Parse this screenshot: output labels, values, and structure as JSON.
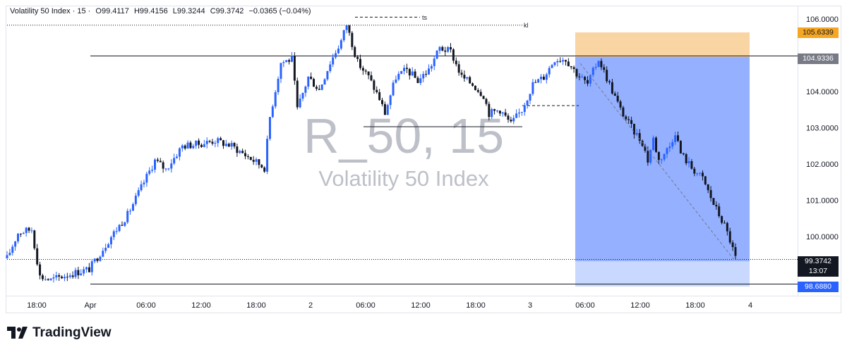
{
  "header": {
    "symbol": "Volatility 50 Index · 15 ·",
    "open": "O99.4117",
    "high": "H99.4156",
    "low": "L99.3244",
    "close": "C99.3742",
    "change": "−0.0365 (−0.04%)"
  },
  "watermark": {
    "symbol": "R_50, 15",
    "name": "Volatility 50 Index"
  },
  "brand": {
    "name": "TradingView"
  },
  "price_labels": {
    "stop": "105.6339",
    "entry": "104.9336",
    "last_price": "99.3742",
    "countdown": "13:07",
    "target": "98.6880"
  },
  "annotations": {
    "ts": "ts",
    "kl": "kl"
  },
  "colors": {
    "up": "#2962ff",
    "down": "#131722",
    "stop_zone": "#f5c98a",
    "target_zone": "#5b8cff",
    "entry_label": "#787b86",
    "target_label": "#2962ff",
    "stop_label": "#f5a623",
    "last_label": "#131722"
  },
  "chart_data": {
    "type": "candlestick",
    "title": "Volatility 50 Index",
    "y_ticks": [
      "106.0000",
      "104.0000",
      "103.0000",
      "102.0000",
      "101.0000",
      "100.0000"
    ],
    "x_ticks": [
      "18:00",
      "Apr",
      "06:00",
      "12:00",
      "18:00",
      "2",
      "06:00",
      "12:00",
      "18:00",
      "3",
      "06:00",
      "12:00",
      "18:00",
      "4"
    ],
    "ylim": [
      98.1,
      106.4
    ],
    "levels": {
      "resistance": 104.98,
      "mid_level": 103.03,
      "support": 98.69,
      "last_price": 99.37,
      "ts": 106.05,
      "kl": 105.83
    },
    "short_position": {
      "entry": 104.9336,
      "stop": 105.6339,
      "target": 98.688
    },
    "path": [
      [
        0,
        99.4
      ],
      [
        4,
        100.1
      ],
      [
        9,
        100.2
      ],
      [
        12,
        98.9
      ],
      [
        16,
        98.8
      ],
      [
        22,
        98.95
      ],
      [
        30,
        99.1
      ],
      [
        38,
        100.0
      ],
      [
        44,
        100.6
      ],
      [
        50,
        101.5
      ],
      [
        54,
        102.1
      ],
      [
        58,
        101.85
      ],
      [
        64,
        102.5
      ],
      [
        70,
        102.55
      ],
      [
        76,
        102.65
      ],
      [
        82,
        102.5
      ],
      [
        90,
        102.1
      ],
      [
        94,
        101.9
      ],
      [
        96,
        103.3
      ],
      [
        100,
        104.8
      ],
      [
        104,
        104.9
      ],
      [
        106,
        103.5
      ],
      [
        110,
        104.4
      ],
      [
        114,
        104.05
      ],
      [
        118,
        104.8
      ],
      [
        122,
        105.4
      ],
      [
        124,
        105.85
      ],
      [
        128,
        104.8
      ],
      [
        132,
        104.4
      ],
      [
        136,
        103.8
      ],
      [
        138,
        103.4
      ],
      [
        142,
        104.4
      ],
      [
        146,
        104.6
      ],
      [
        150,
        104.3
      ],
      [
        154,
        104.6
      ],
      [
        158,
        105.2
      ],
      [
        162,
        105.1
      ],
      [
        166,
        104.4
      ],
      [
        170,
        104.2
      ],
      [
        174,
        103.9
      ],
      [
        176,
        103.4
      ],
      [
        180,
        103.5
      ],
      [
        184,
        103.1
      ],
      [
        188,
        103.5
      ],
      [
        192,
        104.2
      ],
      [
        196,
        104.4
      ],
      [
        200,
        104.9
      ],
      [
        204,
        104.9
      ],
      [
        208,
        104.5
      ],
      [
        212,
        104.2
      ],
      [
        216,
        104.9
      ],
      [
        220,
        104.2
      ],
      [
        224,
        103.5
      ],
      [
        228,
        103.0
      ],
      [
        232,
        102.6
      ],
      [
        234,
        102.1
      ],
      [
        236,
        102.7
      ],
      [
        238,
        102.1
      ],
      [
        242,
        102.5
      ],
      [
        244,
        102.9
      ],
      [
        246,
        102.3
      ],
      [
        250,
        101.9
      ],
      [
        254,
        101.6
      ],
      [
        258,
        100.9
      ],
      [
        262,
        100.3
      ],
      [
        264,
        99.9
      ],
      [
        266,
        99.4
      ]
    ],
    "bars": 267
  }
}
